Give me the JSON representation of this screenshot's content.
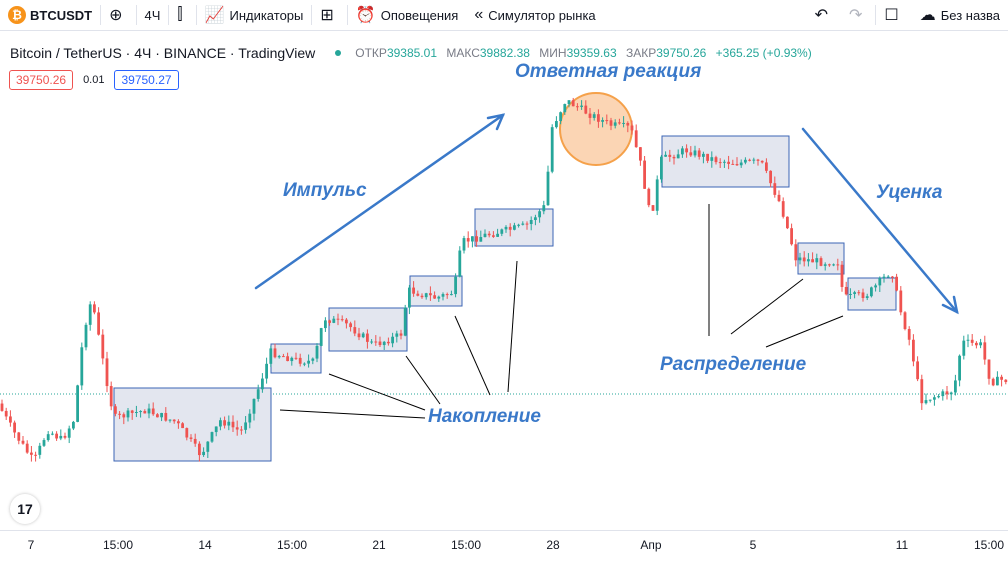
{
  "toolbar": {
    "symbol": "BTCUSDT",
    "interval": "4Ч",
    "indicators_label": "Индикаторы",
    "alerts_label": "Оповещения",
    "replay_label": "Симулятор рынка",
    "save_label": "Без назва"
  },
  "legend": {
    "title": "Bitcoin / TetherUS · 4Ч · BINANCE · TradingView",
    "open_label": "ОТКР",
    "open": "39385.01",
    "high_label": "МАКС",
    "high": "39882.38",
    "low_label": "МИН",
    "low": "39359.63",
    "close_label": "ЗАКР",
    "close": "39750.26",
    "change": "+365.25 (+0.93%)"
  },
  "trade": {
    "sell": "39750.26",
    "spread": "0.01",
    "buy": "39750.27"
  },
  "annotations": {
    "impulse": "Импульс",
    "reaction": "Ответная реакция",
    "markdown": "Уценка",
    "accumulation": "Накопление",
    "distribution": "Распределение"
  },
  "x_axis": [
    "7",
    "15:00",
    "14",
    "15:00",
    "21",
    "15:00",
    "28",
    "Апр",
    "5",
    "11",
    "15:00"
  ],
  "colors": {
    "up": "#26a69a",
    "down": "#ef5350",
    "box_fill": "#e3e6ef",
    "box_stroke": "#3b64b5",
    "arrow": "#3a79c9",
    "circle": "#f5a14a",
    "accent": "#2962ff"
  },
  "icons": [
    "bitcoin-logo",
    "plus-circle-icon",
    "candles-icon",
    "indicators-icon",
    "layout-grid-icon",
    "alarm-clock-icon",
    "rewind-icon",
    "undo-icon",
    "redo-icon",
    "layout-square-icon",
    "cloud-icon",
    "tradingview-logo"
  ]
}
